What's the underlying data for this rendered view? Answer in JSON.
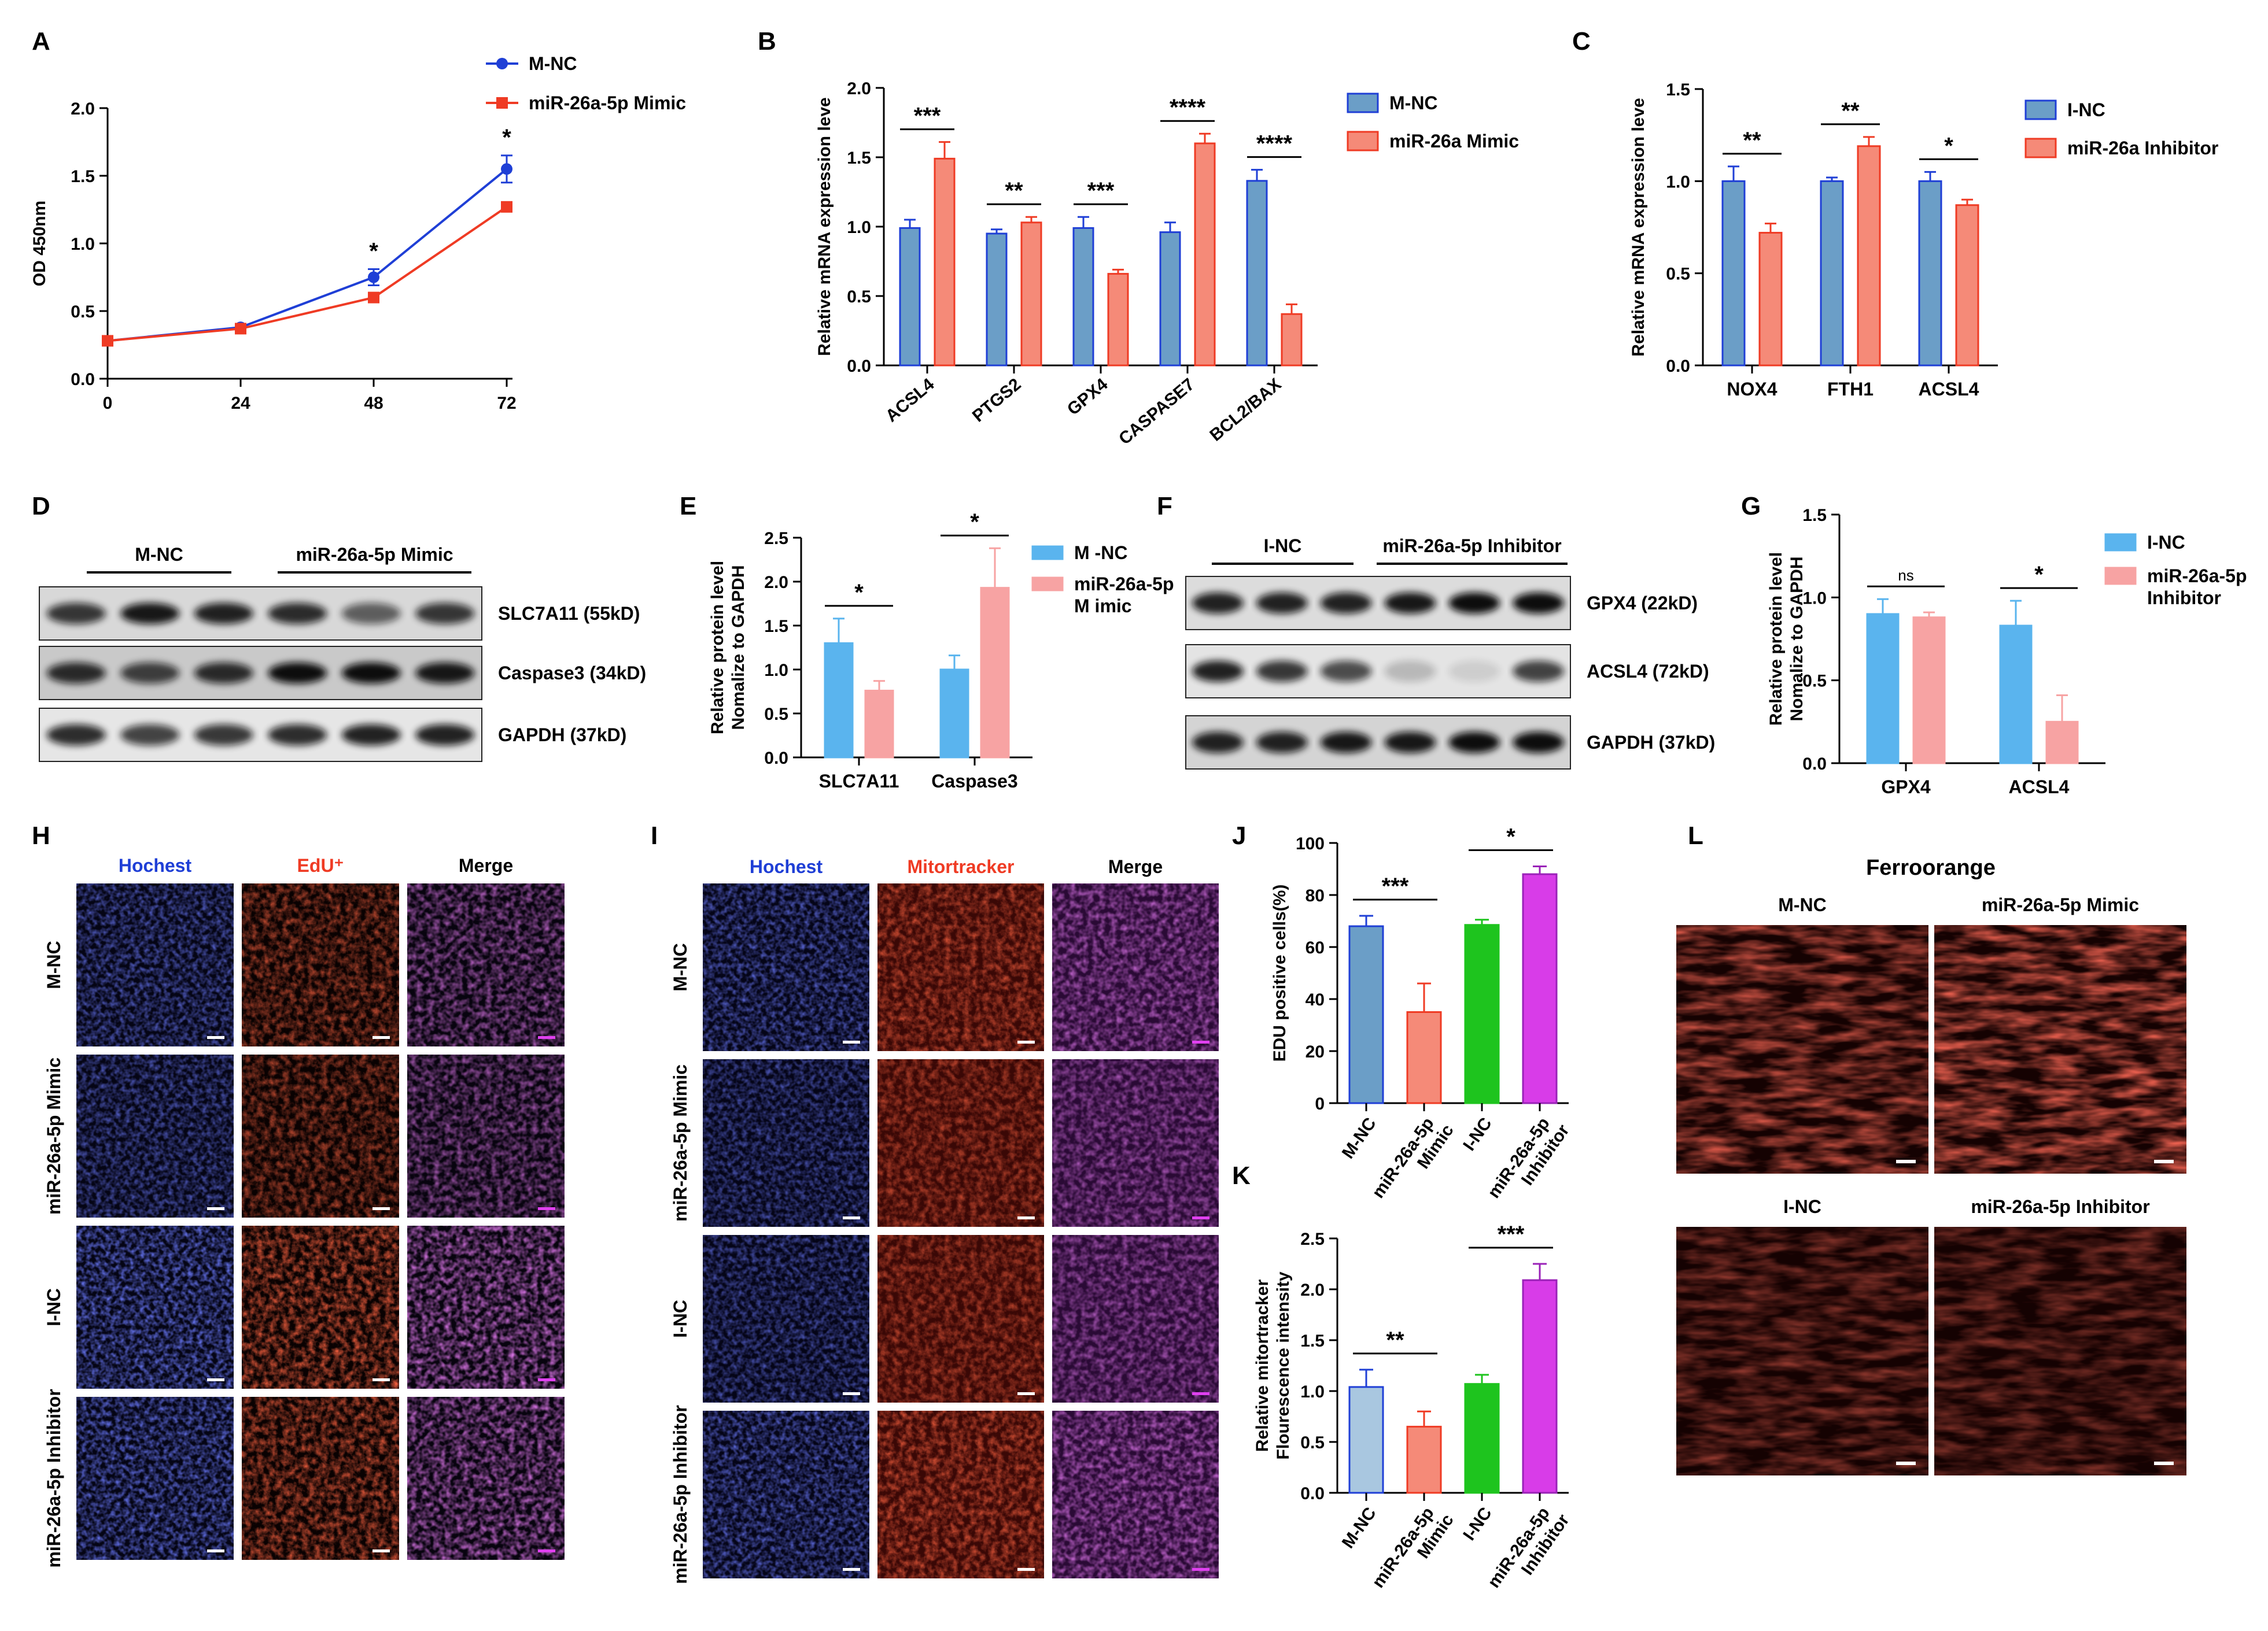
{
  "panel_letters": [
    "A",
    "B",
    "C",
    "D",
    "E",
    "F",
    "G",
    "H",
    "I",
    "J",
    "K",
    "L"
  ],
  "colors": {
    "blue_line": "#1f3fd6",
    "red_line": "#ef3b24",
    "steel_blue": "#6b9ec7",
    "salmon": "#f58a78",
    "sky_blue": "#5ab4ee",
    "pink": "#f7a3a3",
    "green": "#1ec41e",
    "magenta": "#d83ce8",
    "light_steel": "#a9c7e0"
  },
  "chart_data": [
    {
      "panel": "A",
      "type": "line",
      "x": [
        0,
        24,
        48,
        72
      ],
      "ylabel": "OD 450nm",
      "ylim": [
        0,
        2.0
      ],
      "yticks": [
        "0.0",
        "0.5",
        "1.0",
        "1.5",
        "2.0"
      ],
      "xticks": [
        "0",
        "24",
        "48",
        "72"
      ],
      "series": [
        {
          "name": "M-NC",
          "color": "#1f3fd6",
          "marker": "circle",
          "values": [
            0.28,
            0.38,
            0.75,
            1.55
          ],
          "errors": [
            0.01,
            0.01,
            0.06,
            0.1
          ]
        },
        {
          "name": "miR-26a-5p Mimic",
          "color": "#ef3b24",
          "marker": "square",
          "values": [
            0.28,
            0.37,
            0.6,
            1.27
          ],
          "errors": [
            0.01,
            0.01,
            0.02,
            0.03
          ]
        }
      ],
      "annotations": [
        {
          "x": 48,
          "text": "*"
        },
        {
          "x": 72,
          "text": "*"
        }
      ]
    },
    {
      "panel": "B",
      "type": "bar",
      "categories": [
        "ACSL4",
        "PTGS2",
        "GPX4",
        "CASPASE7",
        "BCL2/BAX"
      ],
      "ylabel": "Relative mRNA  expression leve",
      "ylim": [
        0,
        2.0
      ],
      "yticks": [
        "0.0",
        "0.5",
        "1.0",
        "1.5",
        "2.0"
      ],
      "series": [
        {
          "name": "M-NC",
          "color": "#6b9ec7",
          "values": [
            0.99,
            0.95,
            0.99,
            0.96,
            1.33
          ],
          "errors": [
            0.06,
            0.03,
            0.08,
            0.07,
            0.08
          ]
        },
        {
          "name": "miR-26a Mimic",
          "color": "#f58a78",
          "values": [
            1.49,
            1.03,
            0.66,
            1.6,
            0.37
          ],
          "errors": [
            0.12,
            0.04,
            0.03,
            0.07,
            0.07
          ]
        }
      ],
      "significance": [
        "***",
        "**",
        "***",
        "****",
        "****"
      ]
    },
    {
      "panel": "C",
      "type": "bar",
      "categories": [
        "NOX4",
        "FTH1",
        "ACSL4"
      ],
      "ylabel": "Relative mRNA  expression leve",
      "ylim": [
        0,
        1.5
      ],
      "yticks": [
        "0.0",
        "0.5",
        "1.0",
        "1.5"
      ],
      "series": [
        {
          "name": "I-NC",
          "color": "#6b9ec7",
          "values": [
            1.0,
            1.0,
            1.0
          ],
          "errors": [
            0.08,
            0.02,
            0.05
          ]
        },
        {
          "name": "miR-26a Inhibitor",
          "color": "#f58a78",
          "values": [
            0.72,
            1.19,
            0.87
          ],
          "errors": [
            0.05,
            0.05,
            0.03
          ]
        }
      ],
      "significance": [
        "**",
        "**",
        "*"
      ]
    },
    {
      "panel": "E",
      "type": "bar",
      "categories": [
        "SLC7A11",
        "Caspase3"
      ],
      "ylabel_lines": [
        "Relative  protein level",
        "Nomalize to GAPDH"
      ],
      "ylim": [
        0,
        2.5
      ],
      "yticks": [
        "0.0",
        "0.5",
        "1.0",
        "1.5",
        "2.0",
        "2.5"
      ],
      "series": [
        {
          "name": "M-NC",
          "legend_label": "M -NC",
          "color": "#5ab4ee",
          "values": [
            1.3,
            1.0
          ],
          "errors": [
            0.28,
            0.16
          ]
        },
        {
          "name": "miR-26a-5p Mimic",
          "legend_label_lines": [
            "miR-26a-5p",
            "M imic"
          ],
          "color": "#f7a3a3",
          "values": [
            0.76,
            1.93
          ],
          "errors": [
            0.11,
            0.45
          ]
        }
      ],
      "significance": [
        "*",
        "*"
      ]
    },
    {
      "panel": "G",
      "type": "bar",
      "categories": [
        "GPX4",
        "ACSL4"
      ],
      "ylabel_lines": [
        "Relative  protein level",
        "Nomalize to GAPDH"
      ],
      "ylim": [
        0,
        1.5
      ],
      "yticks": [
        "0.0",
        "0.5",
        "1.0",
        "1.5"
      ],
      "series": [
        {
          "name": "I-NC",
          "color": "#5ab4ee",
          "values": [
            0.9,
            0.83
          ],
          "errors": [
            0.09,
            0.15
          ]
        },
        {
          "name": "miR-26a-5p Inhibitor",
          "legend_label_lines": [
            "miR-26a-5p",
            "Inhibitor"
          ],
          "color": "#f7a3a3",
          "values": [
            0.88,
            0.25
          ],
          "errors": [
            0.03,
            0.16
          ]
        }
      ],
      "significance": [
        "ns",
        "*"
      ]
    },
    {
      "panel": "J",
      "type": "bar",
      "categories": [
        "M-NC",
        "miR-26a-5p Mimic",
        "I-NC",
        "miR-26a-5p Inhibitor"
      ],
      "category_label_lines": [
        [
          "M-NC"
        ],
        [
          "miR-26a-5p",
          "Mimic"
        ],
        [
          "I-NC"
        ],
        [
          "miR-26a-5p",
          "Inhibitor"
        ]
      ],
      "ylabel": "EDU positive cells(%)",
      "ylim": [
        0,
        100
      ],
      "yticks": [
        "0",
        "20",
        "40",
        "60",
        "80",
        "100"
      ],
      "values": [
        68,
        35,
        68.5,
        88
      ],
      "errors": [
        4,
        11,
        2,
        3
      ],
      "bar_colors": [
        "#6b9ec7",
        "#f58a78",
        "#1ec41e",
        "#d83ce8"
      ],
      "significance": [
        {
          "pair": [
            0,
            1
          ],
          "text": "***"
        },
        {
          "pair": [
            2,
            3
          ],
          "text": "*"
        }
      ]
    },
    {
      "panel": "K",
      "type": "bar",
      "categories": [
        "M-NC",
        "miR-26a-5p Mimic",
        "I-NC",
        "miR-26a-5p Inhibitor"
      ],
      "category_label_lines": [
        [
          "M-NC"
        ],
        [
          "miR-26a-5p",
          "Mimic"
        ],
        [
          "I-NC"
        ],
        [
          "miR-26a-5p",
          "Inhibitor"
        ]
      ],
      "ylabel_lines": [
        "Relative mitortracker",
        "Flourescence intensity"
      ],
      "ylim": [
        0,
        2.5
      ],
      "yticks": [
        "0.0",
        "0.5",
        "1.0",
        "1.5",
        "2.0",
        "2.5"
      ],
      "values": [
        1.04,
        0.65,
        1.07,
        2.09
      ],
      "errors": [
        0.17,
        0.15,
        0.09,
        0.16
      ],
      "bar_colors": [
        "#a9c7e0",
        "#f58a78",
        "#1ec41e",
        "#d83ce8"
      ],
      "significance": [
        {
          "pair": [
            0,
            1
          ],
          "text": "**"
        },
        {
          "pair": [
            2,
            3
          ],
          "text": "***"
        }
      ]
    }
  ],
  "blots": {
    "D": {
      "groups": [
        "M-NC",
        "miR-26a-5p Mimic"
      ],
      "bands": [
        "SLC7A11 (55kD)",
        "Caspase3 (34kD)",
        "GAPDH (37kD)"
      ]
    },
    "F": {
      "groups": [
        "I-NC",
        "miR-26a-5p Inhibitor"
      ],
      "bands": [
        "GPX4 (22kD)",
        "ACSL4 (72kD)",
        "GAPDH (37kD)"
      ]
    }
  },
  "panel_H": {
    "columns": [
      "Hochest",
      "EdU⁺",
      "Merge"
    ],
    "rows": [
      "M-NC",
      "miR-26a-5p Mimic",
      "I-NC",
      "miR-26a-5p Inhibitor"
    ]
  },
  "panel_I": {
    "columns": [
      "Hochest",
      "Mitortracker",
      "Merge"
    ],
    "rows": [
      "M-NC",
      "miR-26a-5p Mimic",
      "I-NC",
      "miR-26a-5p Inhibitor"
    ]
  },
  "panel_L": {
    "title": "Ferroorange",
    "labels": [
      "M-NC",
      "miR-26a-5p Mimic",
      "I-NC",
      "miR-26a-5p Inhibitor"
    ]
  }
}
